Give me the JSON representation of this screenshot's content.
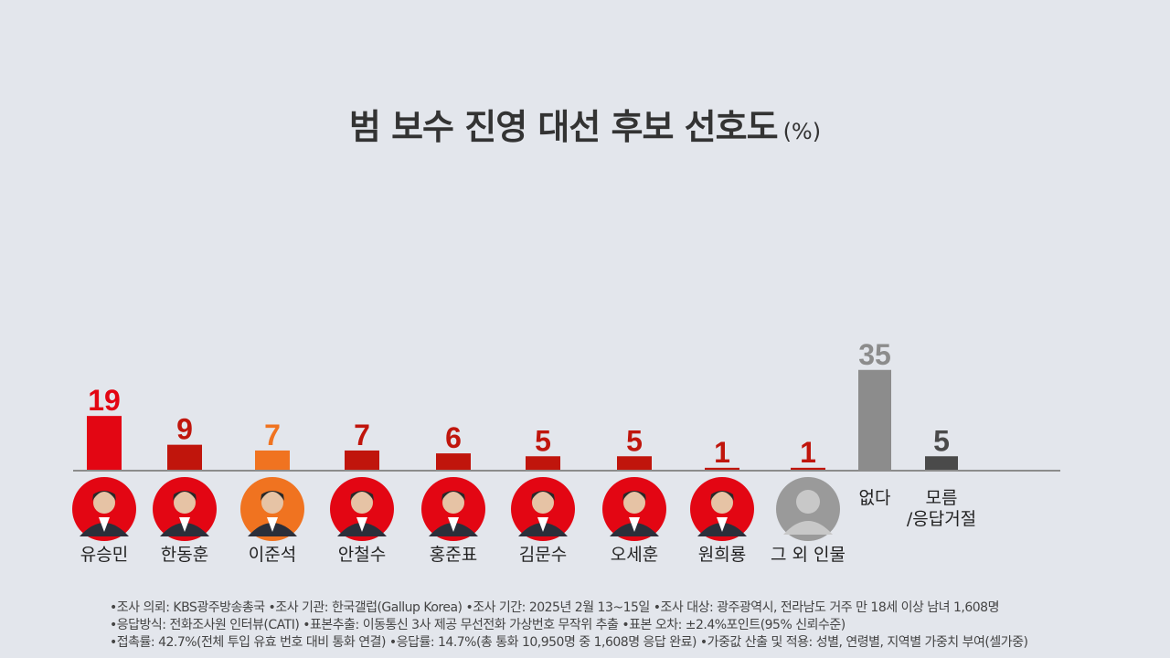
{
  "title": "범 보수 진영 대선 후보 선호도",
  "unit": "(%)",
  "chart_data": {
    "type": "bar",
    "title": "범 보수 진영 대선 후보 선호도",
    "unit": "%",
    "categories": [
      "유승민",
      "한동훈",
      "이준석",
      "안철수",
      "홍준표",
      "김문수",
      "오세훈",
      "원희룡",
      "그 외 인물",
      "없다",
      "모름\n/응답거절"
    ],
    "values": [
      19,
      9,
      7,
      7,
      6,
      5,
      5,
      1,
      1,
      35,
      5
    ],
    "colors": [
      "#e30613",
      "#c0150c",
      "#f07320",
      "#c0150c",
      "#c0150c",
      "#c0150c",
      "#c0150c",
      "#c0150c",
      "#c0150c",
      "#8c8c8c",
      "#4a4a4a"
    ],
    "label_colors": [
      "#e30613",
      "#c0150c",
      "#f07320",
      "#c0150c",
      "#c0150c",
      "#c0150c",
      "#c0150c",
      "#c0150c",
      "#c0150c",
      "#8c8c8c",
      "#4a4a4a"
    ],
    "avatar_colors": [
      "#e30613",
      "#e30613",
      "#f07320",
      "#e30613",
      "#e30613",
      "#e30613",
      "#e30613",
      "#e30613",
      "#9a9a9a"
    ]
  },
  "notes": [
    "•조사 의뢰: KBS광주방송총국   •조사 기관: 한국갤럽(Gallup Korea)   •조사 기간: 2025년 2월 13~15일  •조사 대상: 광주광역시, 전라남도 거주 만 18세 이상 남녀 1,608명",
    "•응답방식: 전화조사원 인터뷰(CATI)  •표본추출: 이동통신 3사 제공 무선전화 가상번호 무작위 추출   •표본 오차: ±2.4%포인트(95% 신뢰수준)",
    "•접촉률: 42.7%(전체 투입 유효 번호 대비 통화 연결)  •응답률: 14.7%(총 통화 10,950명 중 1,608명 응답 완료)  •가중값 산출 및 적용: 성별, 연령별, 지역별 가중치 부여(셀가중)"
  ]
}
